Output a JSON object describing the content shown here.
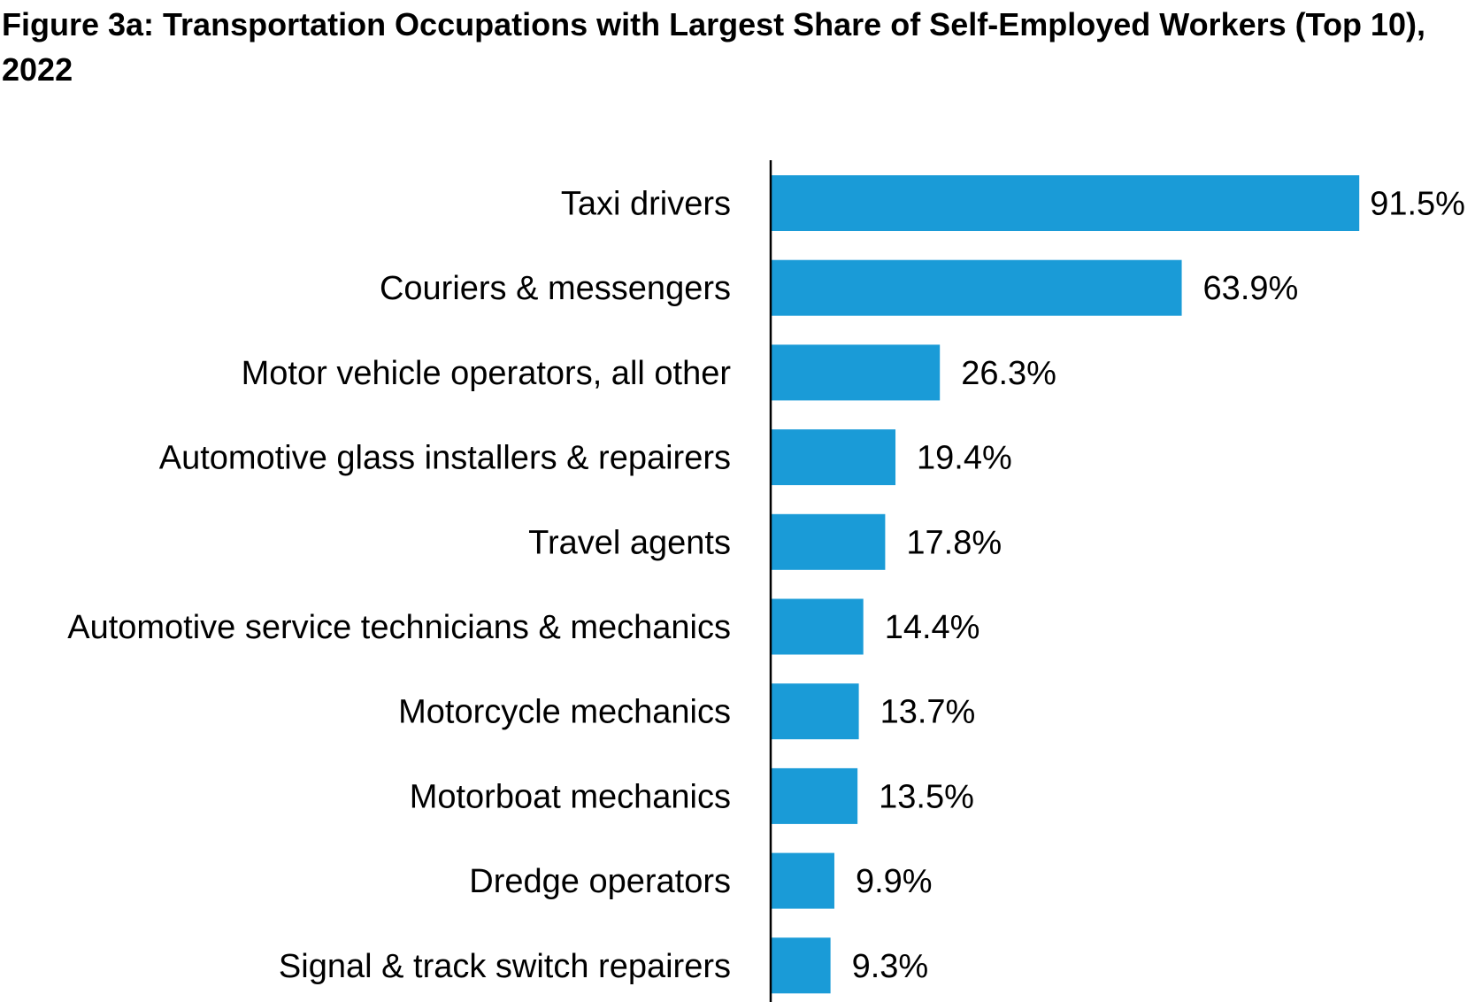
{
  "chart_data": {
    "type": "bar",
    "orientation": "horizontal",
    "title_parts": [
      "Figure 3a: Transportation Occupations with Largest ",
      "Share",
      " of Self-Employed Workers (Top 10), 2022"
    ],
    "categories": [
      "Taxi drivers",
      "Couriers & messengers",
      "Motor vehicle operators, all other",
      "Automotive glass installers & repairers",
      "Travel agents",
      "Automotive service technicians & mechanics",
      "Motorcycle mechanics",
      "Motorboat mechanics",
      "Dredge operators",
      "Signal & track switch repairers"
    ],
    "values": [
      91.5,
      63.9,
      26.3,
      19.4,
      17.8,
      14.4,
      13.7,
      13.5,
      9.9,
      9.3
    ],
    "data_labels": [
      "91.5%",
      "63.9%",
      "26.3%",
      "19.4%",
      "17.8%",
      "14.4%",
      "13.7%",
      "13.5%",
      "9.9%",
      "9.3%"
    ],
    "xlim": [
      0,
      100
    ],
    "unit": "%",
    "grid": false,
    "legend": "none",
    "bar_color": "#1A9BD7"
  }
}
